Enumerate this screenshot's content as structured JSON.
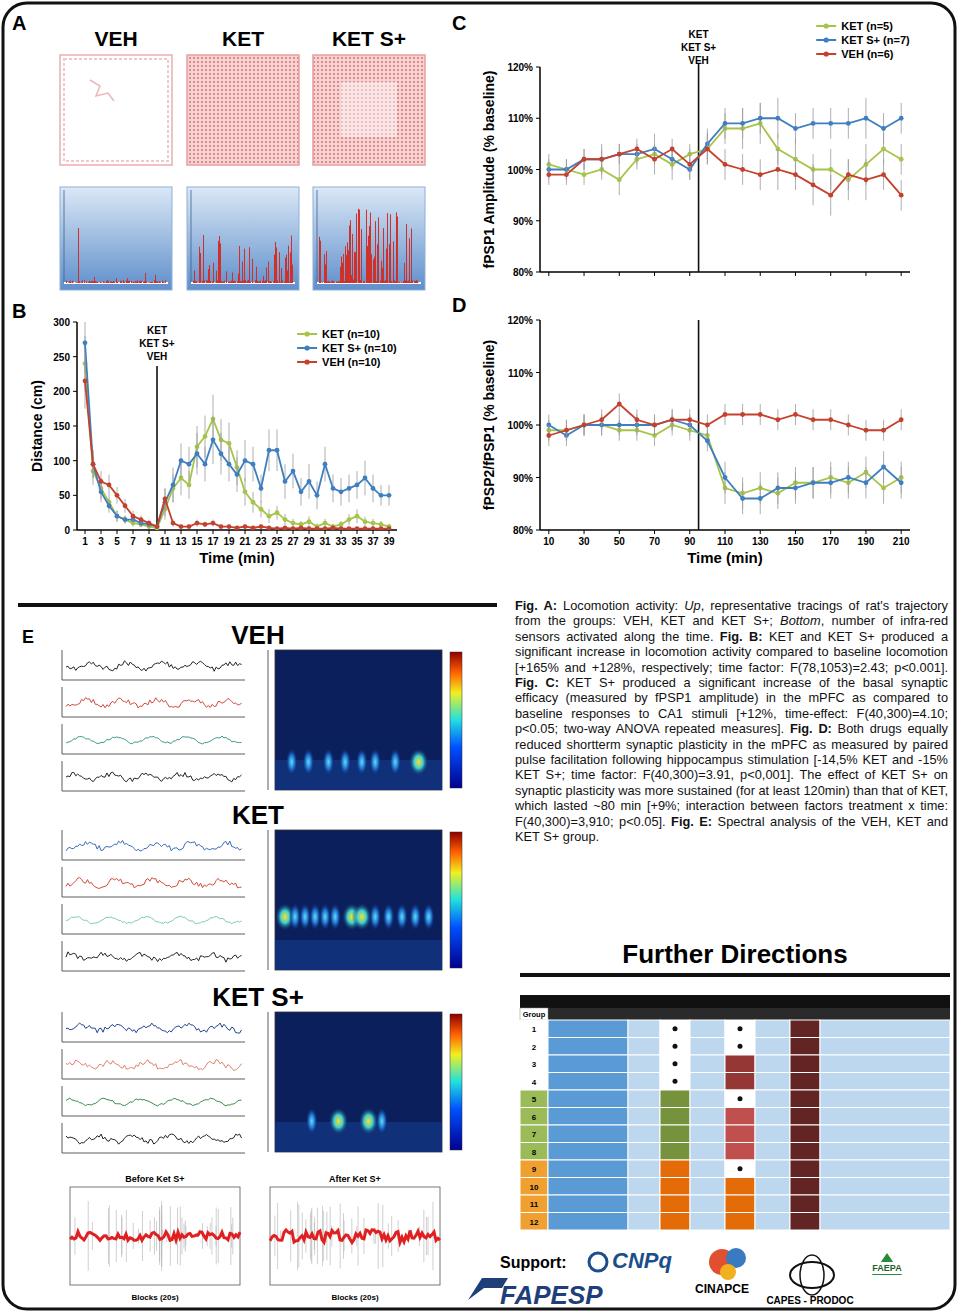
{
  "panel_labels": {
    "a": "A",
    "b": "B",
    "c": "C",
    "d": "D",
    "e": "E"
  },
  "panel_a": {
    "groups": [
      "VEH",
      "KET",
      "KET S+"
    ]
  },
  "chart_data": [
    {
      "type": "line",
      "x_label": "Time (min)",
      "y_label": "Distance (cm)",
      "x": [
        1,
        2,
        3,
        4,
        5,
        6,
        7,
        8,
        9,
        10,
        11,
        12,
        13,
        14,
        15,
        16,
        17,
        18,
        19,
        20,
        21,
        22,
        23,
        24,
        25,
        26,
        27,
        28,
        29,
        30,
        31,
        32,
        33,
        34,
        35,
        36,
        37,
        38,
        39
      ],
      "xlim": [
        0,
        40
      ],
      "xticks": [
        1,
        3,
        5,
        7,
        9,
        11,
        13,
        15,
        17,
        19,
        21,
        23,
        25,
        27,
        29,
        31,
        33,
        35,
        37,
        39
      ],
      "ylim": [
        0,
        300
      ],
      "yticks": [
        0,
        50,
        100,
        150,
        200,
        250,
        300
      ],
      "legend": "upper right",
      "marker": "circle",
      "annotation": {
        "x": 10,
        "labels": [
          "KET",
          "KET S+",
          "VEH"
        ]
      },
      "series": [
        {
          "name": "KET (n=10)",
          "color": "#a6c448",
          "values": [
            240,
            85,
            60,
            40,
            20,
            15,
            10,
            8,
            5,
            3,
            30,
            60,
            75,
            65,
            120,
            135,
            160,
            130,
            125,
            90,
            55,
            40,
            30,
            20,
            25,
            15,
            10,
            8,
            12,
            5,
            10,
            5,
            8,
            15,
            20,
            12,
            10,
            8,
            5
          ],
          "errors": [
            40,
            20,
            15,
            10,
            8,
            5,
            5,
            4,
            3,
            2,
            15,
            20,
            25,
            20,
            30,
            30,
            35,
            30,
            30,
            25,
            20,
            15,
            12,
            10,
            10,
            8,
            6,
            5,
            8,
            4,
            6,
            4,
            5,
            8,
            10,
            7,
            6,
            5,
            4
          ]
        },
        {
          "name": "KET S+ (n=10)",
          "color": "#3f7fc1",
          "values": [
            270,
            95,
            55,
            35,
            20,
            15,
            15,
            10,
            8,
            5,
            40,
            65,
            100,
            95,
            110,
            95,
            130,
            110,
            95,
            80,
            100,
            95,
            60,
            115,
            115,
            70,
            85,
            55,
            70,
            50,
            95,
            60,
            55,
            60,
            65,
            75,
            60,
            50,
            50
          ],
          "errors": [
            45,
            20,
            15,
            10,
            8,
            6,
            6,
            5,
            4,
            3,
            20,
            25,
            25,
            25,
            30,
            25,
            35,
            30,
            25,
            25,
            30,
            25,
            20,
            30,
            30,
            25,
            25,
            20,
            25,
            20,
            25,
            20,
            20,
            20,
            20,
            25,
            20,
            15,
            15
          ]
        },
        {
          "name": "VEH (n=10)",
          "color": "#c4412e",
          "values": [
            215,
            95,
            70,
            65,
            50,
            35,
            20,
            15,
            10,
            5,
            45,
            10,
            5,
            5,
            10,
            8,
            10,
            5,
            5,
            3,
            5,
            3,
            5,
            3,
            2,
            3,
            2,
            3,
            2,
            2,
            2,
            3,
            2,
            2,
            2,
            2,
            2,
            2,
            2
          ],
          "errors": [
            40,
            20,
            15,
            15,
            12,
            10,
            8,
            6,
            5,
            3,
            15,
            5,
            3,
            3,
            5,
            4,
            5,
            3,
            3,
            2,
            3,
            2,
            3,
            2,
            2,
            2,
            2,
            2,
            2,
            2,
            2,
            2,
            2,
            2,
            2,
            2,
            2,
            2,
            2
          ]
        }
      ]
    },
    {
      "type": "line",
      "y_label": "fPSP1 Amplitude (% baseline)",
      "tick_labels": "y",
      "x": [
        10,
        20,
        30,
        40,
        50,
        60,
        70,
        80,
        90,
        100,
        110,
        120,
        130,
        140,
        150,
        160,
        170,
        180,
        190,
        200,
        210
      ],
      "xlim": [
        5,
        215
      ],
      "xticks": [
        10,
        30,
        50,
        70,
        90,
        110,
        130,
        150,
        170,
        190,
        210
      ],
      "ylim": [
        80,
        120
      ],
      "yticks": [
        {
          "value": 80,
          "label": "80%"
        },
        {
          "value": 90,
          "label": "90%"
        },
        {
          "value": 100,
          "label": "100%"
        },
        {
          "value": 110,
          "label": "110%"
        },
        {
          "value": 120,
          "label": "120%"
        }
      ],
      "legend": "upper right",
      "marker": "circle",
      "annotation": {
        "x": 95,
        "labels": [
          "KET",
          "KET S+",
          "VEH"
        ]
      },
      "series": [
        {
          "name": "KET (n=5)",
          "color": "#a6c448",
          "values": [
            101,
            100,
            99,
            100,
            98,
            102,
            103,
            101,
            103,
            104,
            108,
            108,
            109,
            104,
            102,
            100,
            100,
            98,
            101,
            104,
            102
          ],
          "errors": [
            2,
            2,
            2,
            2,
            3,
            2,
            2,
            3,
            2,
            3,
            3,
            4,
            4,
            3,
            4,
            3,
            4,
            4,
            4,
            3,
            3
          ]
        },
        {
          "name": "KET S+ (n=7)",
          "color": "#3f7fc1",
          "values": [
            100,
            100,
            102,
            102,
            103,
            103,
            104,
            102,
            100,
            105,
            109,
            109,
            110,
            110,
            108,
            109,
            109,
            109,
            110,
            108,
            110
          ],
          "errors": [
            2,
            2,
            2,
            2,
            2,
            2,
            3,
            2,
            2,
            3,
            3,
            3,
            3,
            4,
            3,
            3,
            3,
            3,
            4,
            3,
            3
          ]
        },
        {
          "name": "VEH (n=6)",
          "color": "#c4412e",
          "values": [
            99,
            99,
            102,
            102,
            103,
            104,
            102,
            104,
            101,
            104,
            101,
            100,
            99,
            100,
            99,
            97,
            95,
            99,
            98,
            99,
            95
          ],
          "errors": [
            2,
            2,
            2,
            3,
            2,
            2,
            3,
            2,
            3,
            3,
            3,
            3,
            3,
            4,
            3,
            4,
            4,
            3,
            4,
            3,
            3
          ]
        }
      ]
    },
    {
      "type": "line",
      "x_label": "Time (min)",
      "y_label": "fPSP2/fPSP1 (% baseline)",
      "x": [
        10,
        20,
        30,
        40,
        50,
        60,
        70,
        80,
        90,
        100,
        110,
        120,
        130,
        140,
        150,
        160,
        170,
        180,
        190,
        200,
        210
      ],
      "xlim": [
        5,
        215
      ],
      "xticks": [
        10,
        30,
        50,
        70,
        90,
        110,
        130,
        150,
        170,
        190,
        210
      ],
      "ylim": [
        80,
        120
      ],
      "yticks": [
        {
          "value": 80,
          "label": "80%"
        },
        {
          "value": 90,
          "label": "90%"
        },
        {
          "value": 100,
          "label": "100%"
        },
        {
          "value": 110,
          "label": "110%"
        },
        {
          "value": 120,
          "label": "120%"
        }
      ],
      "marker": "circle",
      "annotation": {
        "x": 95
      },
      "series": [
        {
          "name": "KET (n=5)",
          "color": "#a6c448",
          "values": [
            99,
            99,
            100,
            100,
            99,
            99,
            98,
            100,
            99,
            98,
            88,
            87,
            88,
            87,
            89,
            89,
            90,
            89,
            91,
            88,
            90
          ],
          "errors": [
            2,
            2,
            2,
            2,
            2,
            2,
            2,
            2,
            2,
            2,
            3,
            3,
            3,
            3,
            3,
            3,
            3,
            3,
            3,
            3,
            3
          ]
        },
        {
          "name": "KET S+ (n=7)",
          "color": "#3f7fc1",
          "values": [
            100,
            98,
            100,
            100,
            100,
            100,
            100,
            101,
            100,
            97,
            90,
            86,
            86,
            88,
            88,
            89,
            89,
            90,
            89,
            92,
            89
          ],
          "errors": [
            2,
            2,
            2,
            2,
            2,
            2,
            2,
            2,
            2,
            2,
            3,
            3,
            3,
            3,
            3,
            3,
            3,
            3,
            3,
            3,
            3
          ]
        },
        {
          "name": "VEH (n=6)",
          "color": "#c4412e",
          "values": [
            98,
            99,
            100,
            101,
            104,
            101,
            100,
            101,
            101,
            100,
            102,
            102,
            102,
            101,
            102,
            101,
            101,
            100,
            99,
            99,
            101
          ],
          "errors": [
            2,
            2,
            2,
            2,
            2,
            2,
            2,
            2,
            2,
            2,
            2,
            2,
            2,
            2,
            2,
            2,
            2,
            2,
            2,
            2,
            2
          ]
        }
      ]
    }
  ],
  "panel_e": {
    "groups": [
      "VEH",
      "KET",
      "KET S+"
    ],
    "before": "Before Ket S+",
    "after": "After Ket S+",
    "x_label": "Blocks (20s)"
  },
  "caption": [
    {
      "text": "Fig. A:",
      "bold": true
    },
    {
      "text": " Locomotion activity: "
    },
    {
      "text": "Up",
      "italic": true
    },
    {
      "text": ", representative tracings of rat's trajectory from the groups: VEH, KET and KET S+; "
    },
    {
      "text": "Bottom",
      "italic": true
    },
    {
      "text": ", number of infra-red sensors activated along the time. "
    },
    {
      "text": "Fig. B:",
      "bold": true
    },
    {
      "text": " KET and KET S+ produced a significant increase in locomotion activity compared to baseline locomotion [+165% and +128%, respectively; time factor: F(78,1053)=2.43; p<0.001]. "
    },
    {
      "text": "Fig. C:",
      "bold": true
    },
    {
      "text": " KET S+ produced a significant increase of the basal synaptic efficacy (measured by fPSP1 amplitude) in the mPFC as compared to baseline responses to CA1 stimuli [+12%, time-effect: F(40,300)=4.10; p<0.05; two-way ANOVA repeated measures]. "
    },
    {
      "text": "Fig. D:",
      "bold": true
    },
    {
      "text": " Both drugs equally reduced shortterm synaptic plasticity in the mPFC as measured by paired pulse facilitation following hippocampus stimulation [-14,5% KET and -15% KET S+; time factor: F(40,300)=3.91, p<0,001]. The effect of KET S+ on synaptic plasticity was more sustained (for at least 120min) than that of KET, which lasted ~80 min [+9%; interaction between factors treatment x time: F(40,300)=3,910; p<0.05]. "
    },
    {
      "text": "Fig. E:",
      "bold": true
    },
    {
      "text": " Spectral analysis of the VEH, KET and KET S+ group."
    }
  ],
  "further_directions": {
    "title": "Further Directions",
    "header": "Group",
    "rows": [
      1,
      2,
      3,
      4,
      5,
      6,
      7,
      8,
      9,
      10,
      11,
      12
    ]
  },
  "support": {
    "label": "Support:",
    "logos": [
      "CNPq",
      "FAPESP",
      "CINAPCE",
      "CAPES - PRODOC",
      "FAEPA"
    ]
  }
}
